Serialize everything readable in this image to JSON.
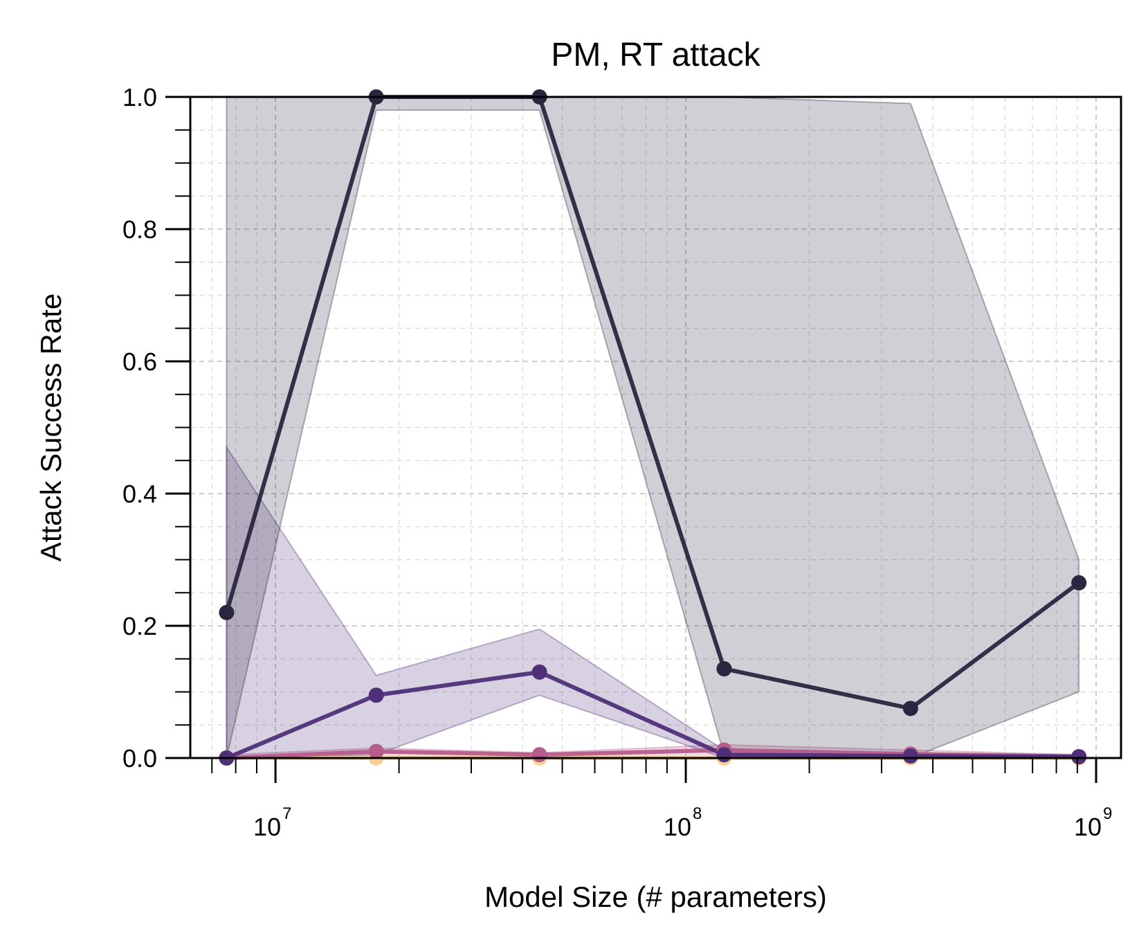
{
  "chart_data": {
    "type": "line",
    "title": "PM, RT attack",
    "xlabel": "Model Size (# parameters)",
    "ylabel": "Attack Success Rate",
    "xscale": "log",
    "xlim": [
      6200000,
      1150000000
    ],
    "ylim": [
      0,
      1.0
    ],
    "yticks": [
      "0.0",
      "0.2",
      "0.4",
      "0.6",
      "0.8",
      "1.0"
    ],
    "yticks_values": [
      0,
      0.2,
      0.4,
      0.6,
      0.8,
      1.0
    ],
    "xticks": [
      {
        "value": 10000000,
        "base": "10",
        "exp": "7"
      },
      {
        "value": 100000000,
        "base": "10",
        "exp": "8"
      },
      {
        "value": 1000000000,
        "base": "10",
        "exp": "9"
      }
    ],
    "grid": true,
    "legend": "none",
    "x": [
      7600000,
      17600000,
      44000000,
      124000000,
      353000000,
      908000000
    ],
    "series": [
      {
        "color": "#2a2640",
        "values": [
          0.22,
          1.0,
          1.0,
          0.135,
          0.075,
          0.265
        ],
        "lower": [
          0.0,
          0.98,
          0.98,
          0.005,
          0.0,
          0.1
        ],
        "upper": [
          1.0,
          1.0,
          1.0,
          1.0,
          0.99,
          0.3
        ]
      },
      {
        "color": "#4f2f78",
        "values": [
          0.0,
          0.095,
          0.13,
          0.005,
          0.003,
          0.002
        ],
        "lower": [
          0.0,
          0.005,
          0.095,
          0.0,
          0.0,
          0.0
        ],
        "upper": [
          0.47,
          0.125,
          0.195,
          0.012,
          0.008,
          0.005
        ]
      },
      {
        "color": "#b65d8c",
        "values": [
          0.0,
          0.01,
          0.005,
          0.012,
          0.006,
          0.002
        ],
        "lower": [
          0.0,
          0.0,
          0.0,
          0.0,
          0.0,
          0.0
        ],
        "upper": [
          0.005,
          0.015,
          0.008,
          0.02,
          0.012,
          0.005
        ]
      },
      {
        "color": "#fccf92",
        "values": [
          0.0,
          0.0,
          0.0,
          0.0,
          0.0,
          0.0
        ],
        "lower": [
          0.0,
          0.0,
          0.0,
          0.0,
          0.0,
          0.0
        ],
        "upper": [
          0.002,
          0.002,
          0.002,
          0.002,
          0.002,
          0.002
        ]
      }
    ]
  }
}
